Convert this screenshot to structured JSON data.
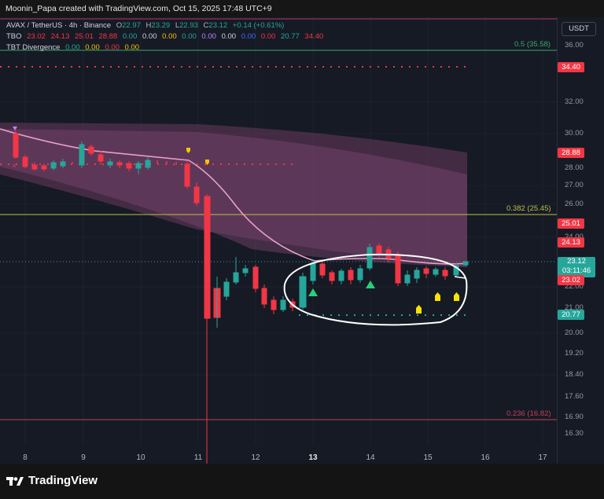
{
  "header": {
    "credit": "Moonin_Papa created with TradingView.com, Oct 15, 2025 17:48 UTC+9"
  },
  "legend": {
    "symbol": "AVAX / TetherUS · 4h · Binance",
    "o_label": "O",
    "o": "22.97",
    "h_label": "H",
    "h": "23.29",
    "l_label": "L",
    "l": "22.93",
    "c_label": "C",
    "c": "23.12",
    "change": "+0.14 (+0.61%)",
    "tbo_label": "TBO",
    "tbo_values": [
      "23.02",
      "24.13",
      "25.01",
      "28.88",
      "0.00",
      "0.00",
      "0.00",
      "0.00",
      "0.00",
      "0.00",
      "0.00",
      "0.00",
      "20.77",
      "34.40"
    ],
    "tbt_label": "TBT Divergence",
    "tbt_values": [
      "0.00",
      "0.00",
      "0.00",
      "0.00"
    ]
  },
  "price_scale": {
    "currency": "USDT",
    "ticks": [
      "36.00",
      "32.00",
      "30.00",
      "28.00",
      "27.00",
      "26.00",
      "24.00",
      "22.00",
      "21.00",
      "20.00",
      "19.20",
      "18.40",
      "17.60",
      "16.90",
      "16.30"
    ],
    "badges": {
      "b3440": "34.40",
      "b2888": "28.88",
      "b2501": "25.01",
      "b2413": "24.13",
      "b2312": "23.12",
      "countdown": "03:11:46",
      "b2302": "23.02",
      "b2077": "20.77"
    }
  },
  "levels": {
    "fib05": "0.5 (35.58)",
    "fib0382": "0.382 (25.45)",
    "fib0236": "0.236 (16.82)"
  },
  "time_axis": [
    "8",
    "9",
    "10",
    "11",
    "12",
    "13",
    "14",
    "15",
    "16",
    "17"
  ],
  "colors": {
    "up": "#26a69a",
    "down": "#f23645",
    "bg": "#161a25",
    "ma": "#e8a0c8",
    "cloud": "#8a4f7a"
  },
  "footer": {
    "brand": "TradingView",
    "brand_icon": "tradingview-logo-icon"
  }
}
